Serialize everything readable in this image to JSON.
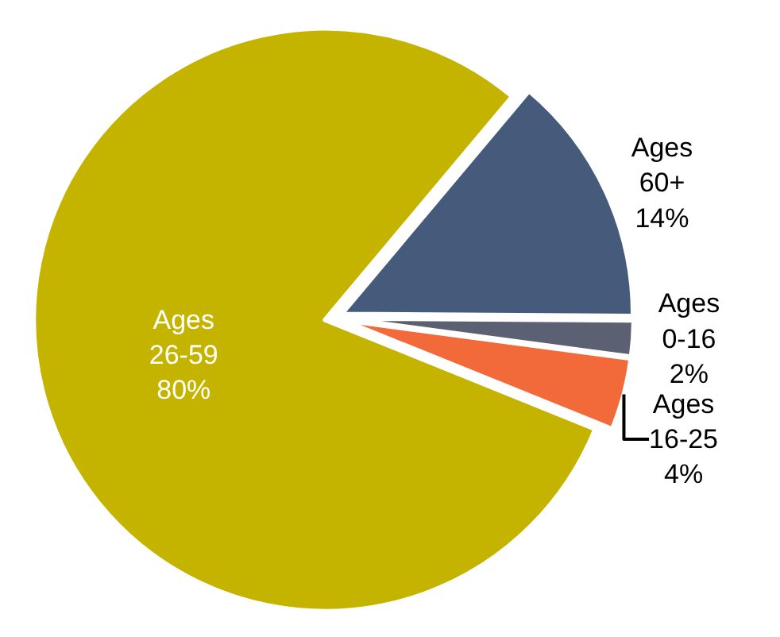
{
  "chart_data": {
    "type": "pie",
    "categories": [
      "Ages 60+",
      "Ages 0-16",
      "Ages 16-25",
      "Ages 26-59"
    ],
    "values": [
      14,
      2,
      4,
      80
    ],
    "value_labels": [
      "14%",
      "2%",
      "4%",
      "80%"
    ],
    "colors": [
      "#465b7c",
      "#5b6072",
      "#f26a3a",
      "#c4b400"
    ],
    "legend": false
  }
}
